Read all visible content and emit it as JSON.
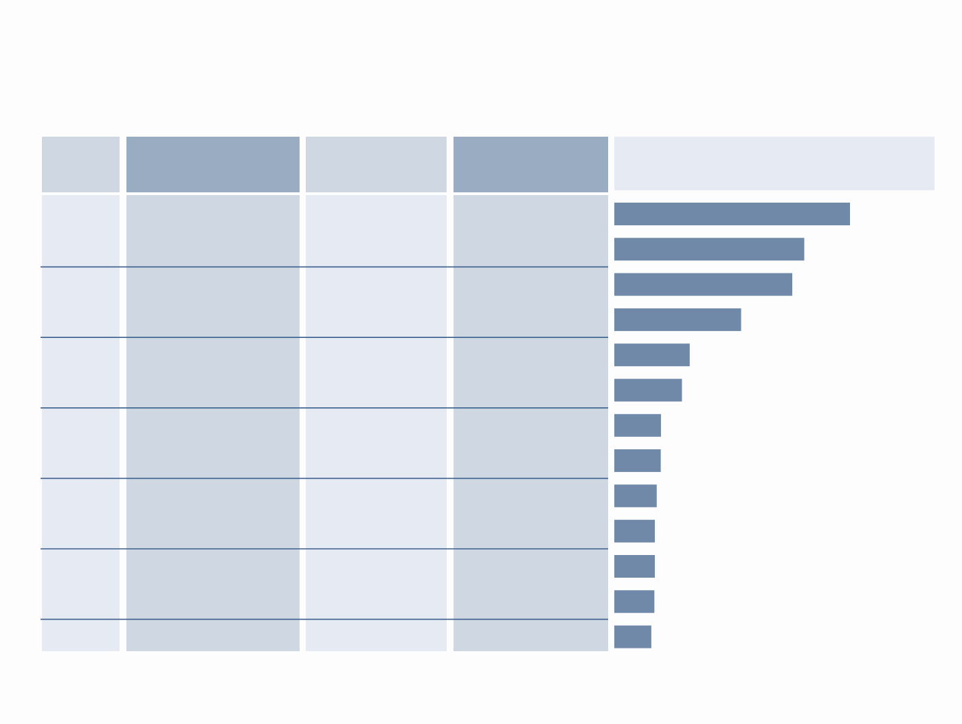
{
  "colors": {
    "page_bg": "#fdfdfe",
    "header_dark": "#9aacc2",
    "header_light": "#cfd7e2",
    "header_bar_column": "#e6eaf2",
    "col_light": "#e6eaf2",
    "col_medium": "#cfd7e2",
    "bar": "#7089a9",
    "row_rule": "#3b5f8c"
  },
  "table": {
    "header_labels": [
      "",
      "",
      "",
      "",
      ""
    ],
    "row_groups": 7,
    "grouped_rows_per_band": 2
  },
  "chart_data": {
    "type": "bar",
    "orientation": "horizontal",
    "title": "",
    "xlabel": "",
    "ylabel": "",
    "categories": [
      "",
      "",
      "",
      "",
      "",
      "",
      "",
      "",
      "",
      "",
      "",
      "",
      ""
    ],
    "values": [
      100,
      80.6,
      75.5,
      53.8,
      32.0,
      28.7,
      19.8,
      19.7,
      18.0,
      17.2,
      17.2,
      17.0,
      15.7
    ],
    "xlim": [
      0,
      135
    ],
    "grid": false,
    "legend": "none"
  }
}
